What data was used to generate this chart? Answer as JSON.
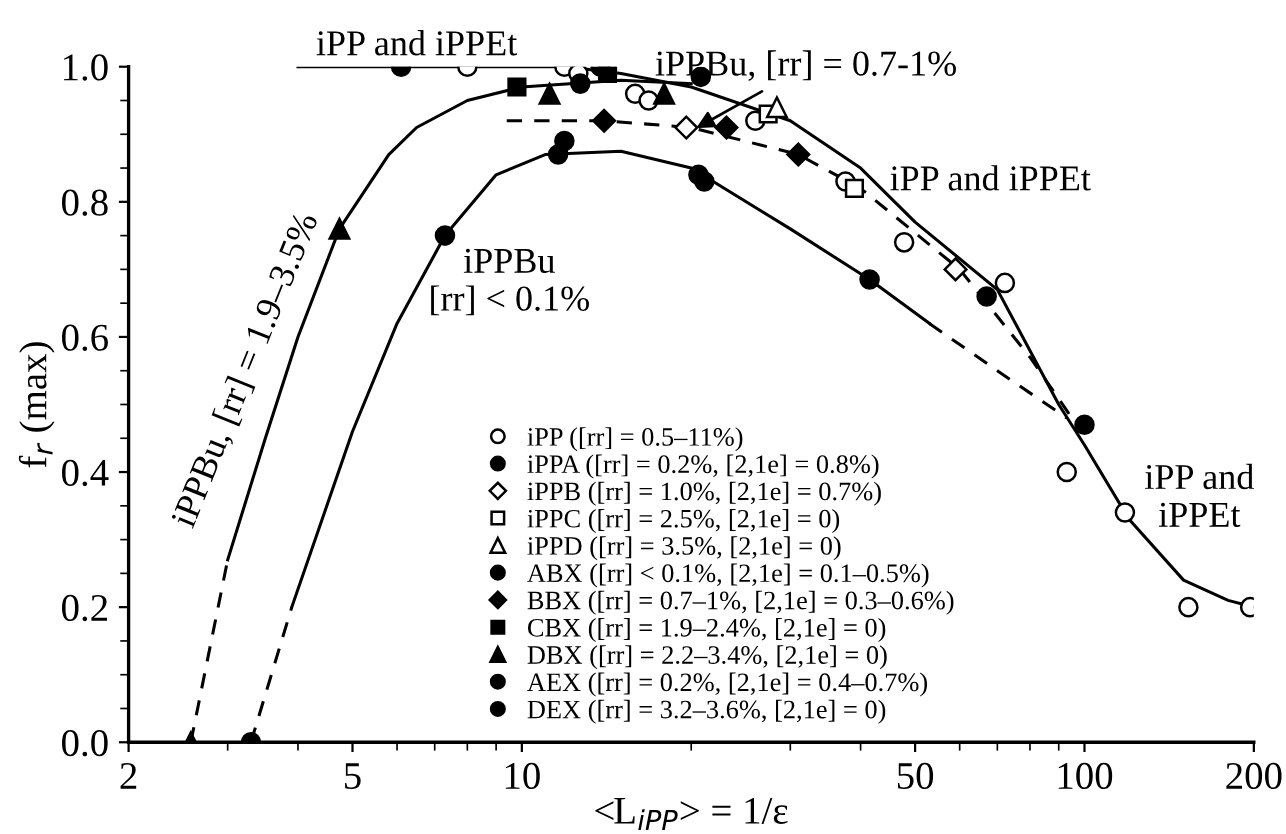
{
  "chart_data": {
    "type": "scatter",
    "xlabel": "<L$_{iPP}$> = 1/ε",
    "ylabel": "f$_{r}$ (max)",
    "log": "x",
    "xlim": [
      2,
      200
    ],
    "ylim": [
      0,
      1.0
    ],
    "xticks": [
      2,
      5,
      10,
      50,
      100,
      200
    ],
    "yticks": [
      {
        "value": 0,
        "label": "0.0"
      },
      0.2,
      0.4,
      0.6,
      0.8,
      {
        "value": 1,
        "label": "1.0"
      }
    ],
    "grid": false,
    "legend": "bottom",
    "series": [
      {
        "type": "line",
        "color": "#000000",
        "line_style": "solid",
        "marker": "none",
        "x": [
          4,
          8,
          12,
          15,
          20,
          30,
          40,
          50,
          70,
          90,
          100,
          120,
          150,
          180,
          200
        ],
        "values": [
          1.0,
          1.0,
          1.0,
          0.99,
          0.97,
          0.92,
          0.85,
          0.77,
          0.67,
          0.5,
          0.44,
          0.33,
          0.24,
          0.21,
          0.2
        ]
      },
      {
        "type": "line",
        "color": "#000000",
        "line_style": "solid",
        "marker": "none",
        "x": [
          3.0,
          3.5,
          4,
          4.74,
          5.8,
          6.5,
          8,
          10,
          15,
          20
        ],
        "values": [
          0.27,
          0.45,
          0.6,
          0.76,
          0.87,
          0.91,
          0.95,
          0.97,
          0.98,
          0.975
        ]
      },
      {
        "type": "line",
        "color": "#000000",
        "line_style": "dashed",
        "marker": "none",
        "x": [
          2.58,
          3.0
        ],
        "values": [
          0.0,
          0.27
        ]
      },
      {
        "type": "line",
        "color": "#000000",
        "line_style": "solid",
        "marker": "none",
        "x": [
          3.9,
          5,
          6,
          7.3,
          9,
          11,
          15,
          20,
          30,
          41.5,
          53
        ],
        "values": [
          0.2,
          0.46,
          0.62,
          0.75,
          0.84,
          0.87,
          0.875,
          0.85,
          0.76,
          0.685,
          0.62
        ]
      },
      {
        "type": "line",
        "color": "#000000",
        "line_style": "dashed",
        "marker": "none",
        "x": [
          3.3,
          3.9
        ],
        "values": [
          0.0,
          0.2
        ]
      },
      {
        "type": "line",
        "color": "#000000",
        "line_style": "dashed",
        "marker": "none",
        "x": [
          53,
          70,
          93
        ],
        "values": [
          0.62,
          0.55,
          0.48
        ]
      },
      {
        "type": "line",
        "color": "#000000",
        "line_style": "dashed",
        "marker": "none",
        "x": [
          9.4,
          14,
          20,
          31,
          40,
          60,
          80,
          95
        ],
        "values": [
          0.92,
          0.92,
          0.91,
          0.87,
          0.82,
          0.7,
          0.57,
          0.48
        ]
      },
      {
        "name": "iPP ([rr] = 0.5–11%)",
        "color": "#ffffff",
        "marker": "circle",
        "x": [
          8,
          11.9,
          12.6,
          15.9,
          16.8,
          26,
          37.6,
          47.8,
          72.2,
          93,
          118,
          153,
          197
        ],
        "values": [
          1.0,
          1.0,
          0.99,
          0.96,
          0.95,
          0.92,
          0.83,
          0.74,
          0.68,
          0.4,
          0.34,
          0.2,
          0.2
        ]
      },
      {
        "name": "iPPA ([rr] = 0.2%, [2,1e] = 0.8%)",
        "color": "#000000",
        "marker": "circle",
        "x": [
          6.1,
          13.8,
          100
        ],
        "values": [
          1.0,
          1.0,
          0.47
        ]
      },
      {
        "name": "iPPB ([rr] = 1.0%, [2,1e] = 0.7%)",
        "color": "#ffffff",
        "marker": "diamond",
        "x": [
          19.6,
          59
        ],
        "values": [
          0.91,
          0.7
        ]
      },
      {
        "name": "iPPC ([rr] = 2.5%, [2,1e] = 0)",
        "color": "#ffffff",
        "marker": "square",
        "x": [
          27.4,
          39
        ],
        "values": [
          0.93,
          0.82
        ]
      },
      {
        "name": "iPPD ([rr] = 3.5%, [2,1e] = 0)",
        "color": "#ffffff",
        "marker": "triangle",
        "x": [
          28.4
        ],
        "values": [
          0.94
        ]
      },
      {
        "name": "ABX ([rr] < 0.1%, [2,1e] = 0.1–0.5%)",
        "color": "#000000",
        "marker": "circle",
        "x": [
          3.3,
          7.3,
          11.6,
          11.9,
          20.6,
          21.1,
          41.5
        ],
        "values": [
          0.0,
          0.75,
          0.87,
          0.89,
          0.84,
          0.83,
          0.685
        ]
      },
      {
        "name": "BBX ([rr] = 0.7–1%, [2,1e] = 0.3–0.6%)",
        "color": "#000000",
        "marker": "diamond",
        "x": [
          14.0,
          23.1,
          31
        ],
        "values": [
          0.92,
          0.91,
          0.87
        ]
      },
      {
        "name": "CBX ([rr] = 1.9–2.4%, [2,1e] = 0)",
        "color": "#000000",
        "marker": "square",
        "x": [
          9.8,
          14.2
        ],
        "values": [
          0.97,
          0.99
        ]
      },
      {
        "name": "DBX ([rr] = 2.2–3.4%, [2,1e] = 0)",
        "color": "#000000",
        "marker": "triangle",
        "x": [
          2.58,
          4.74,
          11.2,
          17.9
        ],
        "values": [
          0.0,
          0.76,
          0.96,
          0.96
        ]
      },
      {
        "name": "AEX ([rr] = 0.2%, [2,1e] = 0.4–0.7%)",
        "color": "#000000",
        "marker": "circle",
        "x": [
          20.8,
          67
        ],
        "values": [
          0.985,
          0.66
        ]
      },
      {
        "name": "DEX ([rr] = 3.2–3.6%, [2,1e] = 0)",
        "color": "#000000",
        "marker": "circle",
        "x": [
          12.7
        ],
        "values": [
          0.975
        ]
      }
    ],
    "annotations": [
      "iPP and iPPEt",
      "iPPBu, [rr] = 1.9–3.5%",
      "iPPBu\n[rr] < 0.1%",
      {
        "text": "iPPBu, [rr] = 0.7-1%",
        "x": 20,
        "y": 0.905
      },
      "iPP and iPPEt",
      "iPP and\niPPEt"
    ]
  }
}
